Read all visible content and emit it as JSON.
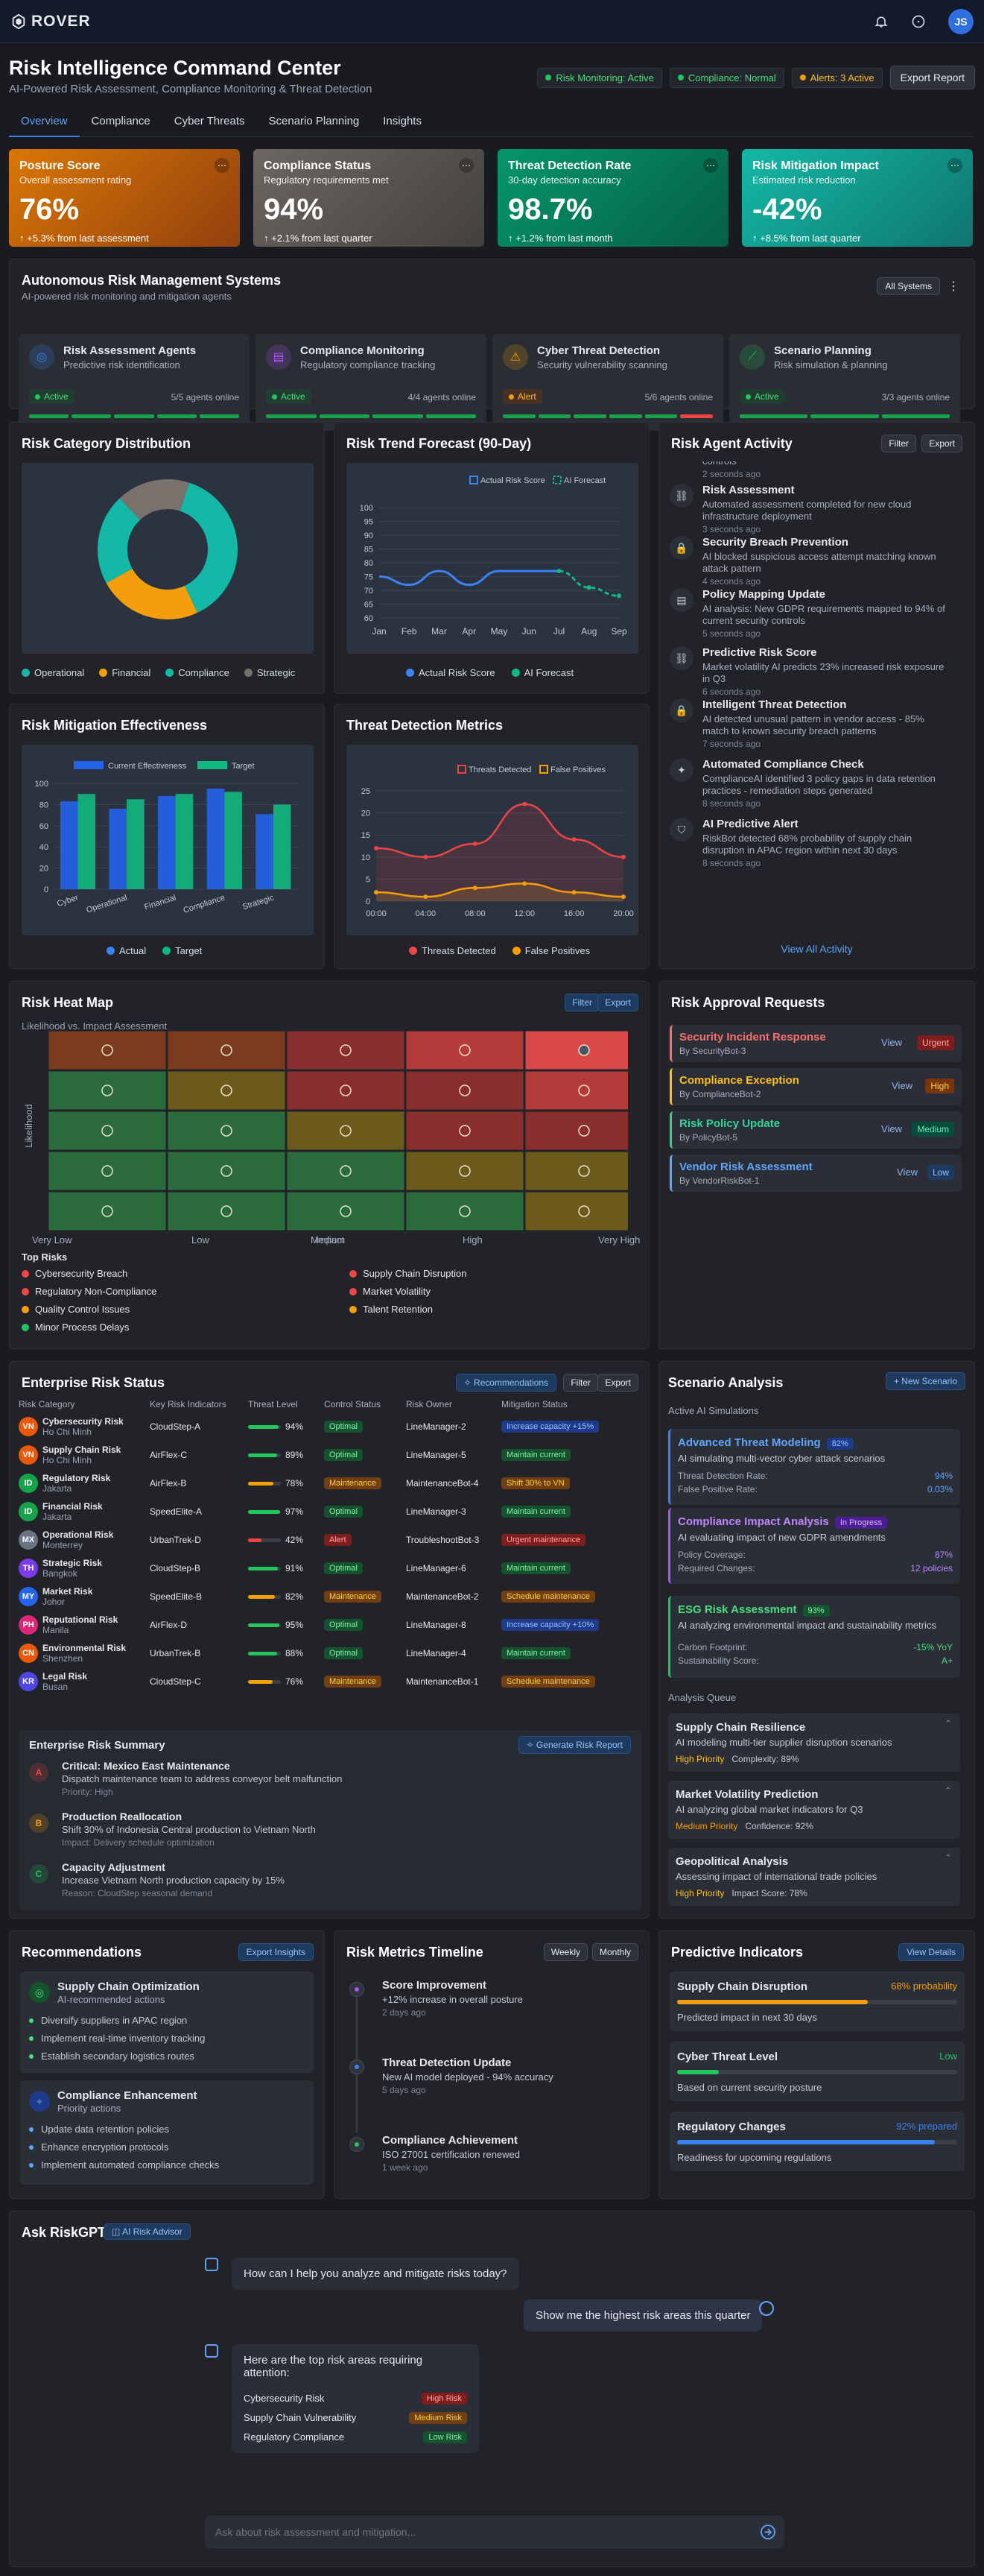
{
  "brand": {
    "name": "ROVER",
    "avatar": "JS"
  },
  "header": {
    "title": "Risk Intelligence Command Center",
    "subtitle": "AI-Powered Risk Assessment, Compliance Monitoring & Threat Detection",
    "pills": [
      {
        "label": "Risk Monitoring: Active",
        "color": "#22c55e"
      },
      {
        "label": "Compliance: Normal",
        "color": "#22c55e"
      },
      {
        "label": "Alerts: 3 Active",
        "color": "#f59e0b"
      }
    ],
    "export": "Export Report"
  },
  "tabs": [
    "Overview",
    "Compliance",
    "Cyber Threats",
    "Scenario Planning",
    "Insights"
  ],
  "kpis": [
    {
      "title": "Posture Score",
      "sub": "Overall assessment rating",
      "value": "76%",
      "change": "↑ +5.3% from last assessment",
      "bg": "#b45309"
    },
    {
      "title": "Compliance Status",
      "sub": "Regulatory requirements met",
      "value": "94%",
      "change": "↑ +2.1% from last quarter",
      "bg": "#57534e"
    },
    {
      "title": "Threat Detection Rate",
      "sub": "30-day detection accuracy",
      "value": "98.7%",
      "change": "↑ +1.2% from last month",
      "bg": "#047857"
    },
    {
      "title": "Risk Mitigation Impact",
      "sub": "Estimated risk reduction",
      "value": "-42%",
      "change": "↑ +8.5% from last quarter",
      "bg": "#0f766e"
    }
  ],
  "systems": {
    "title": "Autonomous Risk Management Systems",
    "sub": "AI-powered risk monitoring and mitigation agents",
    "filter": "All Systems",
    "items": [
      {
        "name": "Risk Assessment Agents",
        "desc": "Predictive risk identification",
        "status": "Active",
        "agents": "5/5 agents online",
        "icon": "◎",
        "ic": "#3b82f6",
        "online": 5,
        "total": 5,
        "bar": "#16a34a"
      },
      {
        "name": "Compliance Monitoring",
        "desc": "Regulatory compliance tracking",
        "status": "Active",
        "agents": "4/4 agents online",
        "icon": "▤",
        "ic": "#a855f7",
        "online": 4,
        "total": 4,
        "bar": "#16a34a"
      },
      {
        "name": "Cyber Threat Detection",
        "desc": "Security vulnerability scanning",
        "status": "Alert",
        "agents": "5/6 agents online",
        "icon": "⚠",
        "ic": "#f59e0b",
        "online": 5,
        "total": 6,
        "bar": "#16a34a"
      },
      {
        "name": "Scenario Planning",
        "desc": "Risk simulation & planning",
        "status": "Active",
        "agents": "3/3 agents online",
        "icon": "⟋",
        "ic": "#22c55e",
        "online": 3,
        "total": 3,
        "bar": "#16a34a"
      }
    ]
  },
  "category": {
    "title": "Risk Category Distribution",
    "legend": [
      "Operational",
      "Financial",
      "Compliance",
      "Strategic"
    ]
  },
  "forecast": {
    "title": "Risk Trend Forecast (90-Day)",
    "legend": [
      "Actual Risk Score",
      "AI Forecast"
    ]
  },
  "mitigation": {
    "title": "Risk Mitigation Effectiveness",
    "legend": [
      "Actual",
      "Target"
    ],
    "inner_legend": [
      "Current Effectiveness",
      "Target"
    ]
  },
  "threat": {
    "title": "Threat Detection Metrics",
    "legend": [
      "Threats Detected",
      "False Positives"
    ]
  },
  "chart_data": [
    {
      "type": "pie",
      "title": "Risk Category Distribution",
      "categories": [
        "Operational",
        "Financial",
        "Compliance",
        "Strategic"
      ],
      "values": [
        38,
        24,
        21,
        17
      ],
      "colors": [
        "#14b8a6",
        "#f59e0b",
        "#14b8a6",
        "#78716c"
      ]
    },
    {
      "type": "line",
      "title": "Risk Trend Forecast (90-Day)",
      "x": [
        "Jan",
        "Feb",
        "Mar",
        "Apr",
        "May",
        "Jun",
        "Jul",
        "Aug",
        "Sep"
      ],
      "ylim": [
        60,
        100
      ],
      "yticks": [
        60,
        65,
        70,
        75,
        80,
        85,
        90,
        95,
        100
      ],
      "series": [
        {
          "name": "Actual Risk Score",
          "values": [
            75,
            72,
            77,
            72,
            77,
            77,
            77,
            null,
            null
          ]
        },
        {
          "name": "AI Forecast",
          "values": [
            null,
            null,
            null,
            null,
            null,
            null,
            77,
            71,
            68
          ]
        }
      ]
    },
    {
      "type": "bar",
      "title": "Risk Mitigation Effectiveness",
      "categories": [
        "Cyber",
        "Operational",
        "Financial",
        "Compliance",
        "Strategic"
      ],
      "ylim": [
        0,
        100
      ],
      "yticks": [
        0,
        20,
        40,
        60,
        80,
        100
      ],
      "series": [
        {
          "name": "Current Effectiveness",
          "values": [
            83,
            76,
            88,
            95,
            71
          ]
        },
        {
          "name": "Target",
          "values": [
            90,
            85,
            90,
            92,
            80
          ]
        }
      ]
    },
    {
      "type": "area",
      "title": "Threat Detection Metrics",
      "x": [
        "00:00",
        "04:00",
        "08:00",
        "12:00",
        "16:00",
        "20:00"
      ],
      "ylim": [
        0,
        25
      ],
      "yticks": [
        0,
        5,
        10,
        15,
        20,
        25
      ],
      "series": [
        {
          "name": "Threats Detected",
          "values": [
            12,
            10,
            13,
            22,
            14,
            10
          ]
        },
        {
          "name": "False Positives",
          "values": [
            2,
            1,
            3,
            4,
            2,
            1
          ]
        }
      ]
    }
  ],
  "activity": {
    "title": "Risk Agent Activity",
    "filter": "Filter",
    "export": "Export",
    "footer": "View All Activity",
    "items": [
      {
        "title": "",
        "desc": "controls",
        "time": "2 seconds ago",
        "icon": "•"
      },
      {
        "title": "Risk Assessment",
        "desc": "Automated assessment completed for new cloud infrastructure deployment",
        "time": "3 seconds ago",
        "icon": "⛓"
      },
      {
        "title": "Security Breach Prevention",
        "desc": "AI blocked suspicious access attempt matching known attack pattern",
        "time": "4 seconds ago",
        "icon": "🔒"
      },
      {
        "title": "Policy Mapping Update",
        "desc": "AI analysis: New GDPR requirements mapped to 94% of current security controls",
        "time": "5 seconds ago",
        "icon": "▤"
      },
      {
        "title": "Predictive Risk Score",
        "desc": "Market volatility AI predicts 23% increased risk exposure in Q3",
        "time": "6 seconds ago",
        "icon": "⛓"
      },
      {
        "title": "Intelligent Threat Detection",
        "desc": "AI detected unusual pattern in vendor access - 85% match to known security breach patterns",
        "time": "7 seconds ago",
        "icon": "🔒"
      },
      {
        "title": "Automated Compliance Check",
        "desc": "ComplianceAI identified 3 policy gaps in data retention practices - remediation steps generated",
        "time": "8 seconds ago",
        "icon": "✦"
      },
      {
        "title": "AI Predictive Alert",
        "desc": "RiskBot detected 68% probability of supply chain disruption in APAC region within next 30 days",
        "time": "8 seconds ago",
        "icon": "⛉"
      }
    ]
  },
  "heatmap": {
    "title": "Risk Heat Map",
    "filter": "Filter",
    "export": "Export",
    "sub": "Likelihood vs. Impact Assessment",
    "ylabel": "Likelihood",
    "xlabels": [
      "Very Low",
      "Low",
      "Medium",
      "High",
      "Very High"
    ],
    "xlabel": "Impact",
    "top": "Top Risks",
    "risks": [
      {
        "name": "Cybersecurity Breach",
        "color": "#ef4444"
      },
      {
        "name": "Supply Chain Disruption",
        "color": "#ef4444"
      },
      {
        "name": "Regulatory Non-Compliance",
        "color": "#ef4444"
      },
      {
        "name": "Market Volatility",
        "color": "#ef4444"
      },
      {
        "name": "Quality Control Issues",
        "color": "#f59e0b"
      },
      {
        "name": "Talent Retention",
        "color": "#f59e0b"
      },
      {
        "name": "Minor Process Delays",
        "color": "#22c55e"
      }
    ]
  },
  "approvals": {
    "title": "Risk Approval Requests",
    "view": "View",
    "items": [
      {
        "name": "Security Incident Response",
        "by": "By SecurityBot-3",
        "pri": "Urgent",
        "color": "#f87171"
      },
      {
        "name": "Compliance Exception",
        "by": "By ComplianceBot-2",
        "pri": "High",
        "color": "#fbbf24"
      },
      {
        "name": "Risk Policy Update",
        "by": "By PolicyBot-5",
        "pri": "Medium",
        "color": "#34d399"
      },
      {
        "name": "Vendor Risk Assessment",
        "by": "By VendorRiskBot-1",
        "pri": "Low",
        "color": "#60a5fa"
      }
    ]
  },
  "enterprise": {
    "title": "Enterprise Risk Status",
    "reco": "Recommendations",
    "filter": "Filter",
    "export": "Export",
    "cols": [
      "Risk Category",
      "Key Risk Indicators",
      "Threat Level",
      "Control Status",
      "Risk Owner",
      "Mitigation Status"
    ],
    "rows": [
      {
        "ini": "VN",
        "ic": "#ea580c",
        "cat": "Cybersecurity Risk",
        "loc": "Ho Chi Minh",
        "kri": "CloudStep-A",
        "lvl": 94,
        "ctl": "Optimal",
        "own": "LineManager-2",
        "mit": "Increase capacity +15%",
        "mc": "blue"
      },
      {
        "ini": "VN",
        "ic": "#ea580c",
        "cat": "Supply Chain Risk",
        "loc": "Ho Chi Minh",
        "kri": "AirFlex-C",
        "lvl": 89,
        "ctl": "Optimal",
        "own": "LineManager-5",
        "mit": "Maintain current",
        "mc": "green"
      },
      {
        "ini": "ID",
        "ic": "#16a34a",
        "cat": "Regulatory Risk",
        "loc": "Jakarta",
        "kri": "AirFlex-B",
        "lvl": 78,
        "ctl": "Maintenance",
        "own": "MaintenanceBot-4",
        "mit": "Shift 30% to VN",
        "mc": "yellow"
      },
      {
        "ini": "ID",
        "ic": "#16a34a",
        "cat": "Financial Risk",
        "loc": "Jakarta",
        "kri": "SpeedElite-A",
        "lvl": 97,
        "ctl": "Optimal",
        "own": "LineManager-3",
        "mit": "Maintain current",
        "mc": "green"
      },
      {
        "ini": "MX",
        "ic": "#6b7280",
        "cat": "Operational Risk",
        "loc": "Monterrey",
        "kri": "UrbanTrek-D",
        "lvl": 42,
        "ctl": "Alert",
        "own": "TroubleshootBot-3",
        "mit": "Urgent maintenance",
        "mc": "red"
      },
      {
        "ini": "TH",
        "ic": "#7c3aed",
        "cat": "Strategic Risk",
        "loc": "Bangkok",
        "kri": "CloudStep-B",
        "lvl": 91,
        "ctl": "Optimal",
        "own": "LineManager-6",
        "mit": "Maintain current",
        "mc": "green"
      },
      {
        "ini": "MY",
        "ic": "#2563eb",
        "cat": "Market Risk",
        "loc": "Johor",
        "kri": "SpeedElite-B",
        "lvl": 82,
        "ctl": "Maintenance",
        "own": "MaintenanceBot-2",
        "mit": "Schedule maintenance",
        "mc": "yellow"
      },
      {
        "ini": "PH",
        "ic": "#db2777",
        "cat": "Reputational Risk",
        "loc": "Manila",
        "kri": "AirFlex-D",
        "lvl": 95,
        "ctl": "Optimal",
        "own": "LineManager-8",
        "mit": "Increase capacity +10%",
        "mc": "blue"
      },
      {
        "ini": "CN",
        "ic": "#ea580c",
        "cat": "Environmental Risk",
        "loc": "Shenzhen",
        "kri": "UrbanTrek-B",
        "lvl": 88,
        "ctl": "Optimal",
        "own": "LineManager-4",
        "mit": "Maintain current",
        "mc": "green"
      },
      {
        "ini": "KR",
        "ic": "#4f46e5",
        "cat": "Legal Risk",
        "loc": "Busan",
        "kri": "CloudStep-C",
        "lvl": 76,
        "ctl": "Maintenance",
        "own": "MaintenanceBot-1",
        "mit": "Schedule maintenance",
        "mc": "yellow"
      }
    ],
    "summary": {
      "title": "Enterprise Risk Summary",
      "gen": "✧ Generate Risk Report",
      "items": [
        {
          "ini": "A",
          "c": "#ef4444",
          "title": "Critical: Mexico East Maintenance",
          "desc": "Dispatch maintenance team to address conveyor belt malfunction",
          "note": "Priority: High"
        },
        {
          "ini": "B",
          "c": "#f59e0b",
          "title": "Production Reallocation",
          "desc": "Shift 30% of Indonesia Central production to Vietnam North",
          "note": "Impact: Delivery schedule optimization"
        },
        {
          "ini": "C",
          "c": "#22c55e",
          "title": "Capacity Adjustment",
          "desc": "Increase Vietnam North production capacity by 15%",
          "note": "Reason: CloudStep seasonal demand"
        }
      ]
    }
  },
  "scenario": {
    "title": "Scenario Analysis",
    "new": "+ New Scenario",
    "active": "Active AI Simulations",
    "queue": "Analysis Queue",
    "sims": [
      {
        "name": "Advanced Threat Modeling",
        "badge": "82%",
        "desc": "AI simulating multi-vector cyber attack scenarios",
        "m": [
          [
            "Threat Detection Rate:",
            "94%"
          ],
          [
            "False Positive Rate:",
            "0.03%"
          ]
        ],
        "c": "#3b82f6"
      },
      {
        "name": "Compliance Impact Analysis",
        "badge": "In Progress",
        "desc": "AI evaluating impact of new GDPR amendments",
        "m": [
          [
            "Policy Coverage:",
            "87%"
          ],
          [
            "Required Changes:",
            "12 policies"
          ]
        ],
        "c": "#a855f7"
      },
      {
        "name": "ESG Risk Assessment",
        "badge": "93%",
        "desc": "AI analyzing environmental impact and sustainability metrics",
        "m": [
          [
            "Carbon Footprint:",
            "-15% YoY"
          ],
          [
            "Sustainability Score:",
            "A+"
          ]
        ],
        "c": "#22c55e"
      }
    ],
    "queue_items": [
      {
        "name": "Supply Chain Resilience",
        "desc": "AI modeling multi-tier supplier disruption scenarios",
        "pri": "High Priority",
        "meta": "Complexity: 89%"
      },
      {
        "name": "Market Volatility Prediction",
        "desc": "AI analyzing global market indicators for Q3",
        "pri": "Medium Priority",
        "meta": "Confidence: 92%"
      },
      {
        "name": "Geopolitical Analysis",
        "desc": "Assessing impact of international trade policies",
        "pri": "High Priority",
        "meta": "Impact Score: 78%"
      }
    ]
  },
  "recommendations": {
    "title": "Recommendations",
    "btn": "Export Insights",
    "cards": [
      {
        "name": "Supply Chain Optimization",
        "sub": "AI-recommended actions",
        "items": [
          "Diversify suppliers in APAC region",
          "Implement real-time inventory tracking",
          "Establish secondary logistics routes"
        ]
      },
      {
        "name": "Compliance Enhancement",
        "sub": "Priority actions",
        "items": [
          "Update data retention policies",
          "Enhance encryption protocols",
          "Implement automated compliance checks"
        ]
      }
    ]
  },
  "timeline": {
    "title": "Risk Metrics Timeline",
    "weekly": "Weekly",
    "monthly": "Monthly",
    "items": [
      {
        "title": "Score Improvement",
        "desc": "+12% increase in overall posture",
        "time": "2 days ago",
        "c": "#a855f7"
      },
      {
        "title": "Threat Detection Update",
        "desc": "New AI model deployed - 94% accuracy",
        "time": "5 days ago",
        "c": "#3b82f6"
      },
      {
        "title": "Compliance Achievement",
        "desc": "ISO 27001 certification renewed",
        "time": "1 week ago",
        "c": "#22c55e"
      }
    ]
  },
  "predictive": {
    "title": "Predictive Indicators",
    "btn": "View Details",
    "items": [
      {
        "name": "Supply Chain Disruption",
        "val": "68% probability",
        "pct": 68,
        "note": "Predicted impact in next 30 days",
        "c": "#f59e0b"
      },
      {
        "name": "Cyber Threat Level",
        "val": "Low",
        "pct": 15,
        "note": "Based on current security posture",
        "c": "#22c55e"
      },
      {
        "name": "Regulatory Changes",
        "val": "92% prepared",
        "pct": 92,
        "note": "Readiness for upcoming regulations",
        "c": "#3b82f6"
      }
    ]
  },
  "chat": {
    "title": "Ask RiskGPT",
    "badge": "AI Risk Advisor",
    "q1": "How can I help you analyze and mitigate risks today?",
    "q2": "Show me the highest risk areas this quarter",
    "a_title": "Here are the top risk areas requiring attention:",
    "rows": [
      {
        "name": "Cybersecurity Risk",
        "tag": "High Risk",
        "c": "red"
      },
      {
        "name": "Supply Chain Vulnerability",
        "tag": "Medium Risk",
        "c": "yellow"
      },
      {
        "name": "Regulatory Compliance",
        "tag": "Low Risk",
        "c": "green"
      }
    ],
    "placeholder": "Ask about risk assessment and mitigation..."
  }
}
